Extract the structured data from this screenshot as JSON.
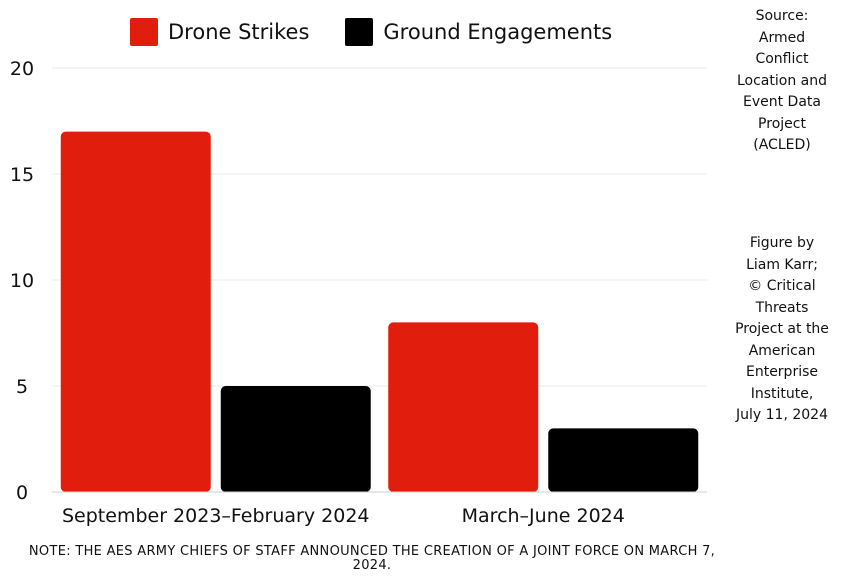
{
  "chart_data": {
    "type": "bar",
    "categories": [
      "September 2023–February 2024",
      "March–June 2024"
    ],
    "series": [
      {
        "name": "Drone Strikes",
        "color": "#e11d0e",
        "values": [
          17,
          8
        ]
      },
      {
        "name": "Ground Engagements",
        "color": "#000000",
        "values": [
          5,
          3
        ]
      }
    ],
    "ylim": [
      0,
      20
    ],
    "yticks": [
      0,
      5,
      10,
      15,
      20
    ],
    "grid": true,
    "legend_position": "top"
  },
  "source_note": "Source:\nArmed\nConflict\nLocation and\nEvent Data\nProject\n(ACLED)",
  "credit_note": "Figure by\nLiam Karr;\n© Critical\nThreats\nProject at the\nAmerican\nEnterprise\nInstitute,\nJuly 11, 2024",
  "footnote": "NOTE: THE AES ARMY CHIEFS OF STAFF ANNOUNCED THE CREATION OF A JOINT FORCE ON MARCH 7, 2024."
}
